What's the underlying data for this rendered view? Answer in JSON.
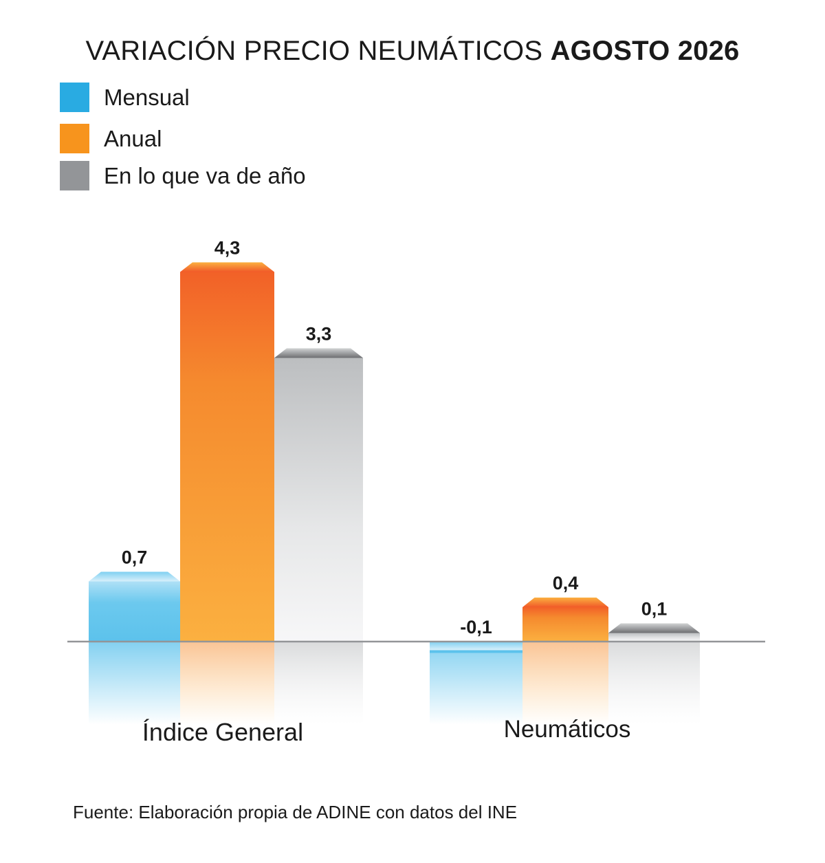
{
  "chart_data": {
    "type": "bar",
    "title": "VARIACIÓN PRECIO NEUMÁTICOS",
    "title_bold": "AGOSTO 2026",
    "categories": [
      "Índice General",
      "Neumáticos"
    ],
    "series": [
      {
        "name": "Mensual",
        "values": [
          0.7,
          -0.1
        ],
        "labels": [
          "0,7",
          "-0,1"
        ],
        "color": "#29abe2"
      },
      {
        "name": "Anual",
        "values": [
          4.3,
          0.4
        ],
        "labels": [
          "4,3",
          "0,4"
        ],
        "color": "#f7941d"
      },
      {
        "name": "En lo que va de año",
        "values": [
          3.3,
          0.1
        ],
        "labels": [
          "3,3",
          "0,1"
        ],
        "color": "#939598"
      }
    ],
    "legend_position": "top-left",
    "grid": false
  },
  "source": "Fuente: Elaboración propia de ADINE con datos del INE"
}
